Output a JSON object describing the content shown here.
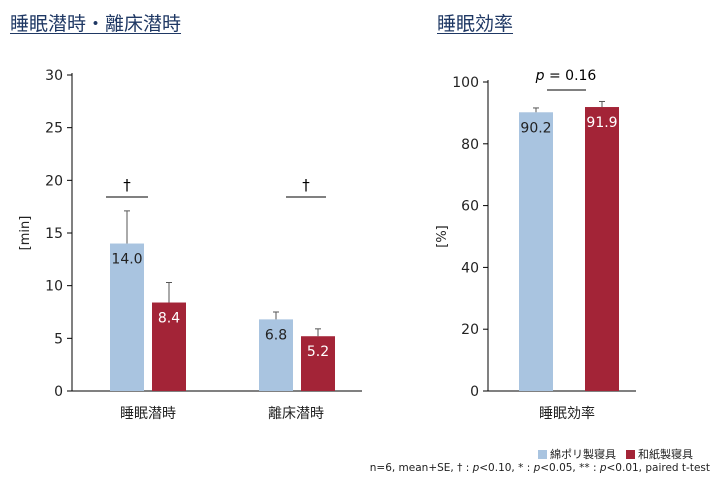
{
  "chart_data": [
    {
      "type": "bar",
      "title": "睡眠潜時・離床潜時",
      "ylabel": "[min]",
      "ylim": [
        0,
        30
      ],
      "yticks": [
        0,
        5,
        10,
        15,
        20,
        25,
        30
      ],
      "categories": [
        "睡眠潜時",
        "離床潜時"
      ],
      "series": [
        {
          "name": "綿ポリ製寝具",
          "values": [
            14.0,
            6.8
          ],
          "labels": [
            "14.0",
            "6.8"
          ],
          "err": [
            3.1,
            0.7
          ]
        },
        {
          "name": "和紙製寝具",
          "values": [
            8.4,
            5.2
          ],
          "labels": [
            "8.4",
            "5.2"
          ],
          "err": [
            1.9,
            0.7
          ]
        }
      ],
      "annotations": [
        "†",
        "†"
      ]
    },
    {
      "type": "bar",
      "title": "睡眠効率",
      "ylabel": "[%]",
      "ylim": [
        0,
        100
      ],
      "yticks": [
        0,
        20,
        40,
        60,
        80,
        100
      ],
      "categories": [
        "睡眠効率"
      ],
      "series": [
        {
          "name": "綿ポリ製寝具",
          "values": [
            90.2
          ],
          "labels": [
            "90.2"
          ],
          "err": [
            1.4
          ]
        },
        {
          "name": "和紙製寝具",
          "values": [
            91.9
          ],
          "labels": [
            "91.9"
          ],
          "err": [
            1.8
          ]
        }
      ],
      "annotation": {
        "p_label": "p",
        "p_rest": " = 0.16"
      }
    }
  ],
  "legend": [
    {
      "label": "綿ポリ製寝具",
      "color": "#a9c4e0"
    },
    {
      "label": "和紙製寝具",
      "color": "#a32437"
    }
  ],
  "footnote": [
    {
      "t": "n=6, mean+SE, † : ",
      "i": false
    },
    {
      "t": "p",
      "i": true
    },
    {
      "t": "<0.10, * : ",
      "i": false
    },
    {
      "t": "p",
      "i": true
    },
    {
      "t": "<0.05, ** : ",
      "i": false
    },
    {
      "t": "p",
      "i": true
    },
    {
      "t": "<0.01, paired t-test",
      "i": false
    }
  ],
  "colors": {
    "series1": "#a9c4e0",
    "series2": "#a32437",
    "heading": "#1f3864",
    "axis": "#000000"
  }
}
